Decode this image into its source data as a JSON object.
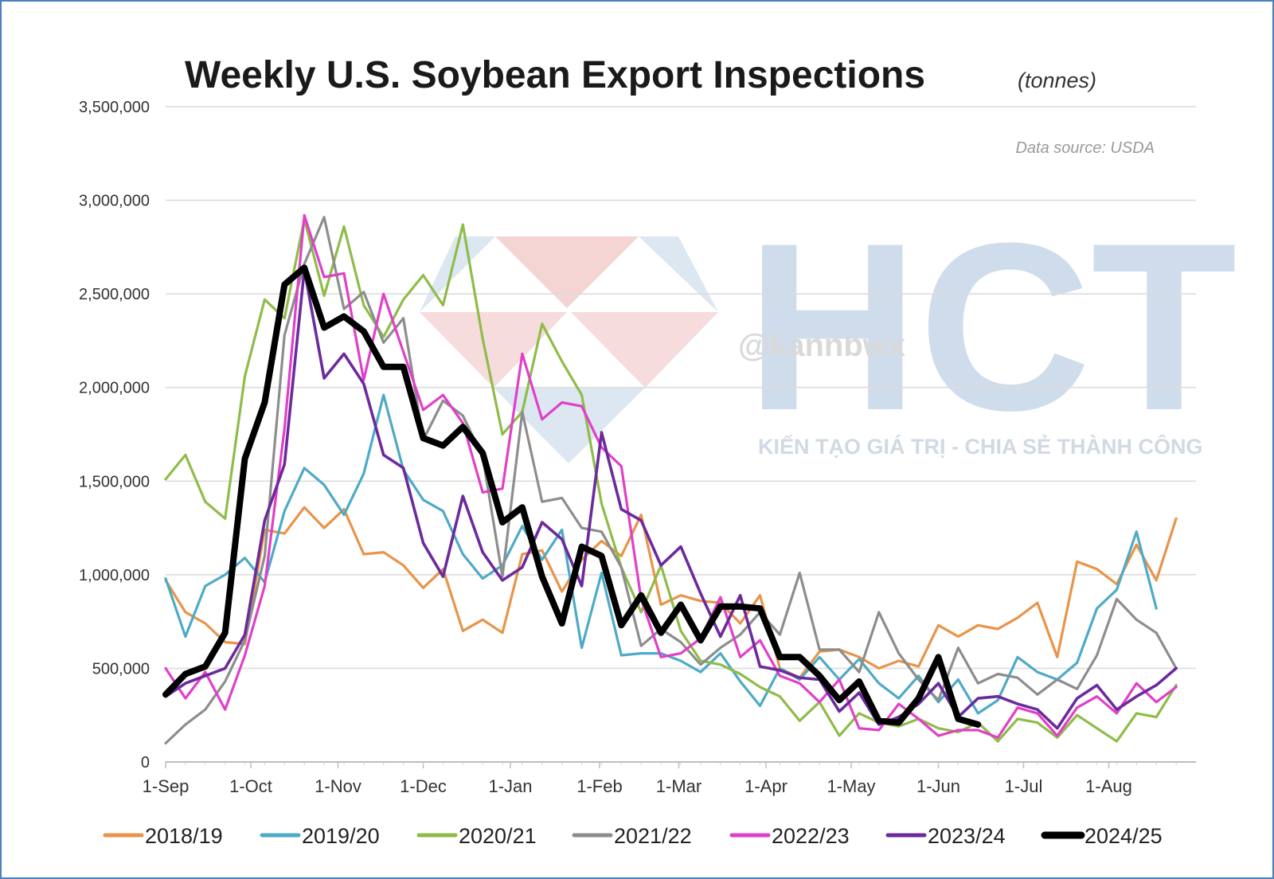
{
  "chart_data": {
    "type": "line",
    "title": "Weekly U.S. Soybean Export Inspections",
    "title_unit": "(tonnes)",
    "source_note": "Data source: USDA",
    "ylim": [
      0,
      3500000
    ],
    "yticks": [
      0,
      500000,
      1000000,
      1500000,
      2000000,
      2500000,
      3000000,
      3500000
    ],
    "ytick_labels": [
      "0",
      "500,000",
      "1,000,000",
      "1,500,000",
      "2,000,000",
      "2,500,000",
      "3,000,000",
      "3,500,000"
    ],
    "x_range_weeks": [
      0,
      52
    ],
    "xticks": [
      {
        "label": "1-Sep",
        "week": 0
      },
      {
        "label": "1-Oct",
        "week": 4.3
      },
      {
        "label": "1-Nov",
        "week": 8.7
      },
      {
        "label": "1-Dec",
        "week": 13
      },
      {
        "label": "1-Jan",
        "week": 17.4
      },
      {
        "label": "1-Feb",
        "week": 21.9
      },
      {
        "label": "1-Mar",
        "week": 25.9
      },
      {
        "label": "1-Apr",
        "week": 30.3
      },
      {
        "label": "1-May",
        "week": 34.6
      },
      {
        "label": "1-Jun",
        "week": 39
      },
      {
        "label": "1-Jul",
        "week": 43.3
      },
      {
        "label": "1-Aug",
        "week": 47.6
      }
    ],
    "grid": true,
    "legend_position": "bottom",
    "series": [
      {
        "name": "2018/19",
        "color": "#e8944a",
        "width": 3.2,
        "values": [
          970000,
          800000,
          740000,
          640000,
          630000,
          1240000,
          1220000,
          1360000,
          1250000,
          1350000,
          1110000,
          1120000,
          1050000,
          930000,
          1030000,
          700000,
          760000,
          690000,
          1110000,
          1130000,
          910000,
          1080000,
          1180000,
          1100000,
          1320000,
          840000,
          890000,
          860000,
          850000,
          740000,
          890000,
          500000,
          450000,
          590000,
          600000,
          560000,
          500000,
          540000,
          510000,
          730000,
          670000,
          730000,
          710000,
          770000,
          850000,
          560000,
          1070000,
          1030000,
          950000,
          1160000,
          970000,
          1300000
        ]
      },
      {
        "name": "2019/20",
        "color": "#4eaac6",
        "width": 3.2,
        "values": [
          980000,
          670000,
          940000,
          1000000,
          1090000,
          960000,
          1340000,
          1570000,
          1480000,
          1320000,
          1540000,
          1960000,
          1560000,
          1400000,
          1340000,
          1110000,
          980000,
          1050000,
          1260000,
          1080000,
          1240000,
          610000,
          1010000,
          570000,
          580000,
          580000,
          540000,
          480000,
          580000,
          430000,
          300000,
          500000,
          440000,
          560000,
          440000,
          550000,
          420000,
          340000,
          460000,
          320000,
          440000,
          260000,
          330000,
          560000,
          480000,
          440000,
          530000,
          820000,
          920000,
          1230000,
          820000
        ]
      },
      {
        "name": "2020/21",
        "color": "#8fbc48",
        "width": 3.2,
        "values": [
          1510000,
          1640000,
          1390000,
          1300000,
          2060000,
          2470000,
          2370000,
          2900000,
          2490000,
          2860000,
          2440000,
          2270000,
          2470000,
          2600000,
          2440000,
          2870000,
          2260000,
          1750000,
          1870000,
          2340000,
          2140000,
          1960000,
          1380000,
          1040000,
          800000,
          1050000,
          700000,
          540000,
          520000,
          470000,
          400000,
          350000,
          220000,
          320000,
          140000,
          260000,
          210000,
          190000,
          230000,
          180000,
          160000,
          210000,
          110000,
          230000,
          210000,
          130000,
          250000,
          180000,
          110000,
          260000,
          240000,
          410000
        ]
      },
      {
        "name": "2021/22",
        "color": "#8d8d8d",
        "width": 3.2,
        "values": [
          100000,
          200000,
          280000,
          430000,
          650000,
          1100000,
          2280000,
          2660000,
          2910000,
          2420000,
          2510000,
          2240000,
          2370000,
          1720000,
          1930000,
          1850000,
          1630000,
          990000,
          1870000,
          1390000,
          1410000,
          1250000,
          1230000,
          1040000,
          620000,
          710000,
          640000,
          520000,
          610000,
          680000,
          800000,
          680000,
          1010000,
          600000,
          600000,
          480000,
          800000,
          580000,
          440000,
          330000,
          610000,
          420000,
          470000,
          450000,
          360000,
          440000,
          390000,
          570000,
          870000,
          760000,
          690000,
          500000
        ]
      },
      {
        "name": "2022/23",
        "color": "#e040c8",
        "width": 3.2,
        "values": [
          500000,
          340000,
          480000,
          280000,
          570000,
          940000,
          1780000,
          2920000,
          2590000,
          2610000,
          2040000,
          2500000,
          2190000,
          1880000,
          1960000,
          1810000,
          1440000,
          1460000,
          2180000,
          1830000,
          1920000,
          1900000,
          1680000,
          1580000,
          870000,
          560000,
          580000,
          660000,
          880000,
          560000,
          650000,
          460000,
          420000,
          320000,
          440000,
          180000,
          170000,
          310000,
          230000,
          140000,
          170000,
          170000,
          130000,
          290000,
          260000,
          140000,
          290000,
          350000,
          260000,
          420000,
          320000,
          400000
        ]
      },
      {
        "name": "2023/24",
        "color": "#6c2a9c",
        "width": 3.6,
        "values": [
          350000,
          420000,
          460000,
          500000,
          680000,
          1290000,
          1590000,
          2630000,
          2050000,
          2180000,
          2020000,
          1640000,
          1570000,
          1170000,
          990000,
          1420000,
          1120000,
          970000,
          1040000,
          1280000,
          1190000,
          940000,
          1760000,
          1350000,
          1290000,
          1050000,
          1150000,
          900000,
          670000,
          890000,
          510000,
          490000,
          450000,
          440000,
          270000,
          370000,
          200000,
          240000,
          310000,
          420000,
          240000,
          340000,
          350000,
          310000,
          280000,
          180000,
          340000,
          410000,
          280000,
          350000,
          410000,
          500000
        ]
      },
      {
        "name": "2024/25",
        "color": "#000000",
        "width": 8,
        "values": [
          360000,
          470000,
          510000,
          690000,
          1620000,
          1920000,
          2550000,
          2640000,
          2320000,
          2380000,
          2300000,
          2110000,
          2110000,
          1730000,
          1690000,
          1790000,
          1650000,
          1280000,
          1360000,
          990000,
          740000,
          1150000,
          1100000,
          730000,
          890000,
          690000,
          840000,
          650000,
          830000,
          830000,
          820000,
          560000,
          560000,
          460000,
          330000,
          430000,
          220000,
          210000,
          340000,
          560000,
          230000,
          200000
        ]
      }
    ]
  },
  "watermark": {
    "handle": "@kannbwx",
    "brand_letters": "HCT",
    "tagline": "KIẾN TẠO GIÁ TRỊ - CHIA SẺ THÀNH CÔNG"
  }
}
